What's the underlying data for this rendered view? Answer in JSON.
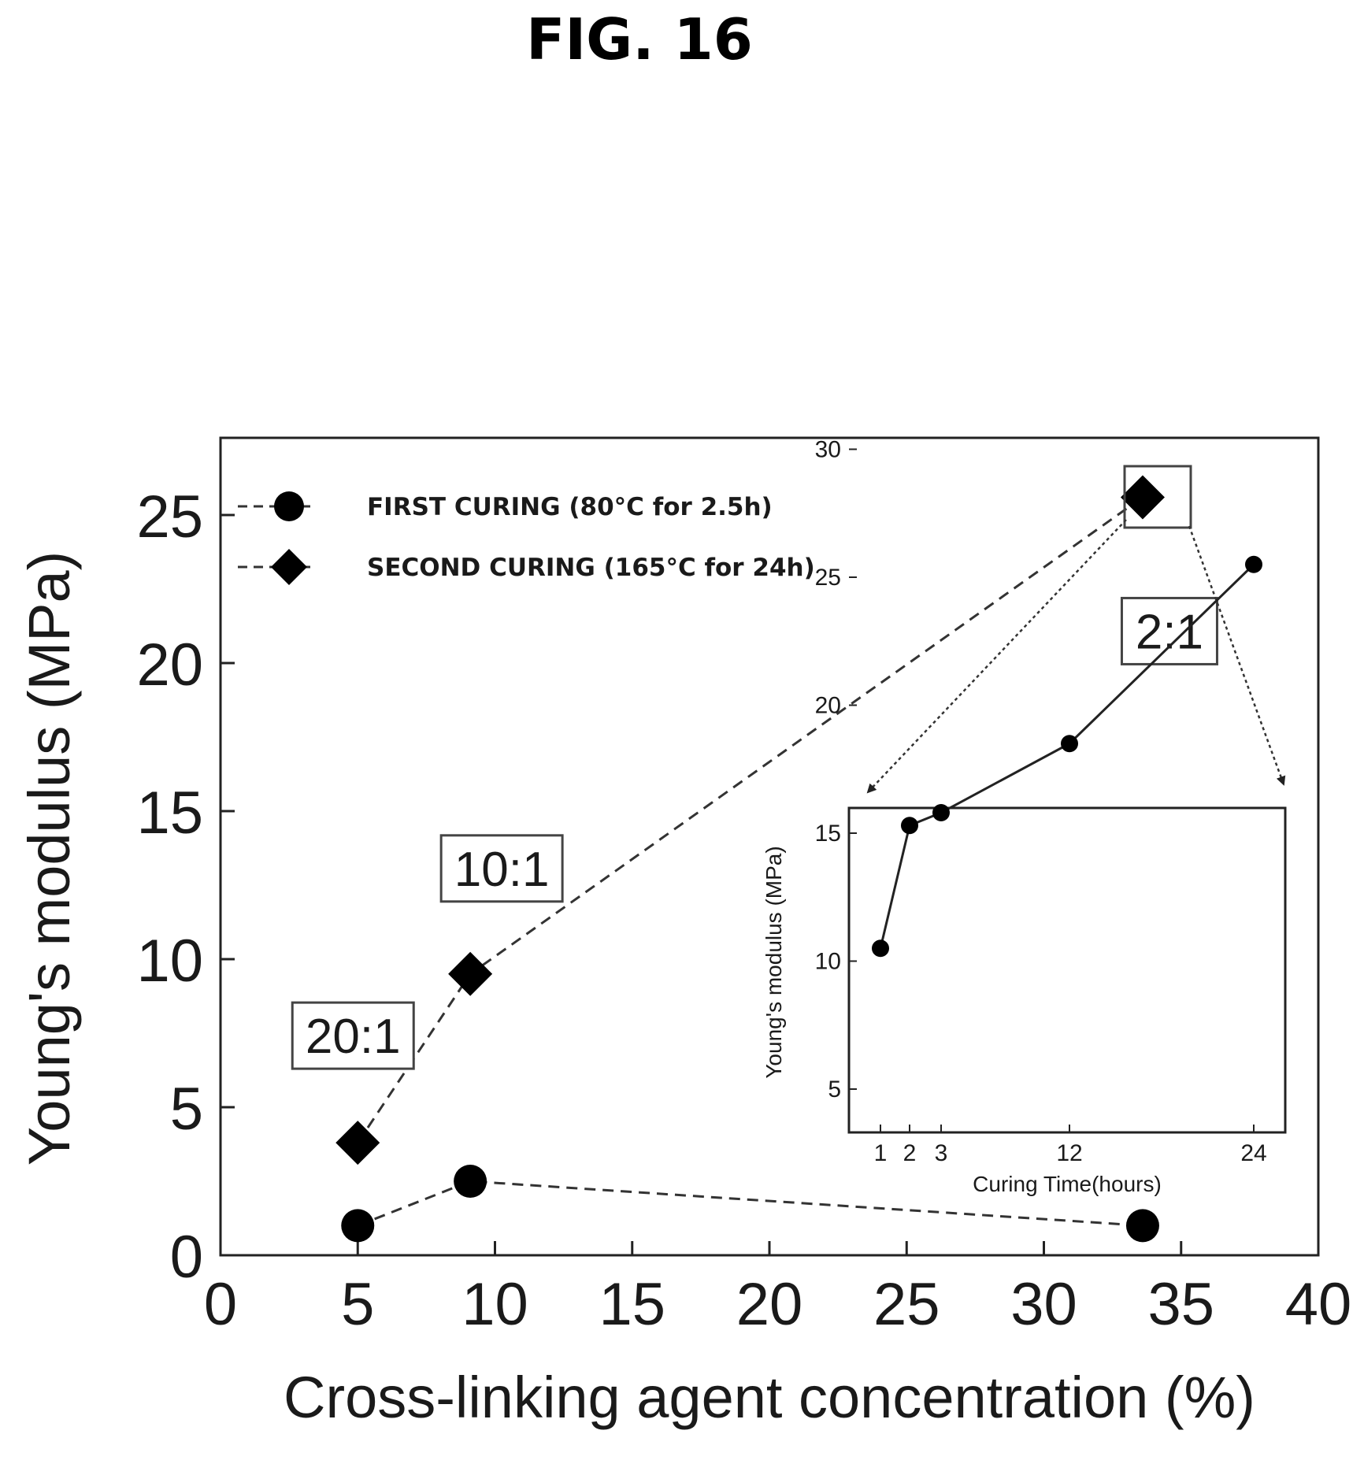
{
  "figure": {
    "title": "FIG. 16"
  },
  "chart_data": [
    {
      "type": "line",
      "title": "",
      "xlabel": "Cross-linking agent concentration (%)",
      "ylabel": "Young's modulus (MPa)",
      "xlim": [
        0,
        40
      ],
      "ylim": [
        0,
        27
      ],
      "xticks": [
        0,
        5,
        10,
        15,
        20,
        25,
        30,
        35,
        40
      ],
      "yticks": [
        0,
        5,
        10,
        15,
        20,
        25
      ],
      "grid": false,
      "legend_position": "top-left",
      "series": [
        {
          "name": "FIRST CURING (80°C for 2.5h)",
          "marker": "circle",
          "line_style": "dashed",
          "x": [
            5,
            9.1,
            33.6
          ],
          "y": [
            1.0,
            2.5,
            1.0
          ]
        },
        {
          "name": "SECOND CURING (165°C for 24h)",
          "marker": "diamond",
          "line_style": "dashed",
          "x": [
            5,
            9.1,
            33.6
          ],
          "y": [
            3.8,
            9.5,
            25.6
          ]
        }
      ],
      "annotations": [
        {
          "text": "20:1",
          "x": 5,
          "y": 3.8
        },
        {
          "text": "10:1",
          "x": 9.1,
          "y": 9.5
        },
        {
          "text": "2:1",
          "x": 33.6,
          "y": 25.6
        }
      ]
    },
    {
      "type": "line",
      "title": "",
      "xlabel": "Curing Time(hours)",
      "ylabel": "Young's modulus (MPa)",
      "x_tick_labels": [
        "1",
        "2",
        "3",
        "12",
        "24"
      ],
      "yticks": [
        5,
        10,
        15,
        20,
        25,
        30
      ],
      "ylim": [
        2,
        32
      ],
      "series": [
        {
          "marker": "circle",
          "line_style": "solid",
          "x": [
            "1",
            "2",
            "3",
            "12",
            "24"
          ],
          "y": [
            10.5,
            15.3,
            15.8,
            18.5,
            25.5
          ]
        }
      ]
    }
  ]
}
